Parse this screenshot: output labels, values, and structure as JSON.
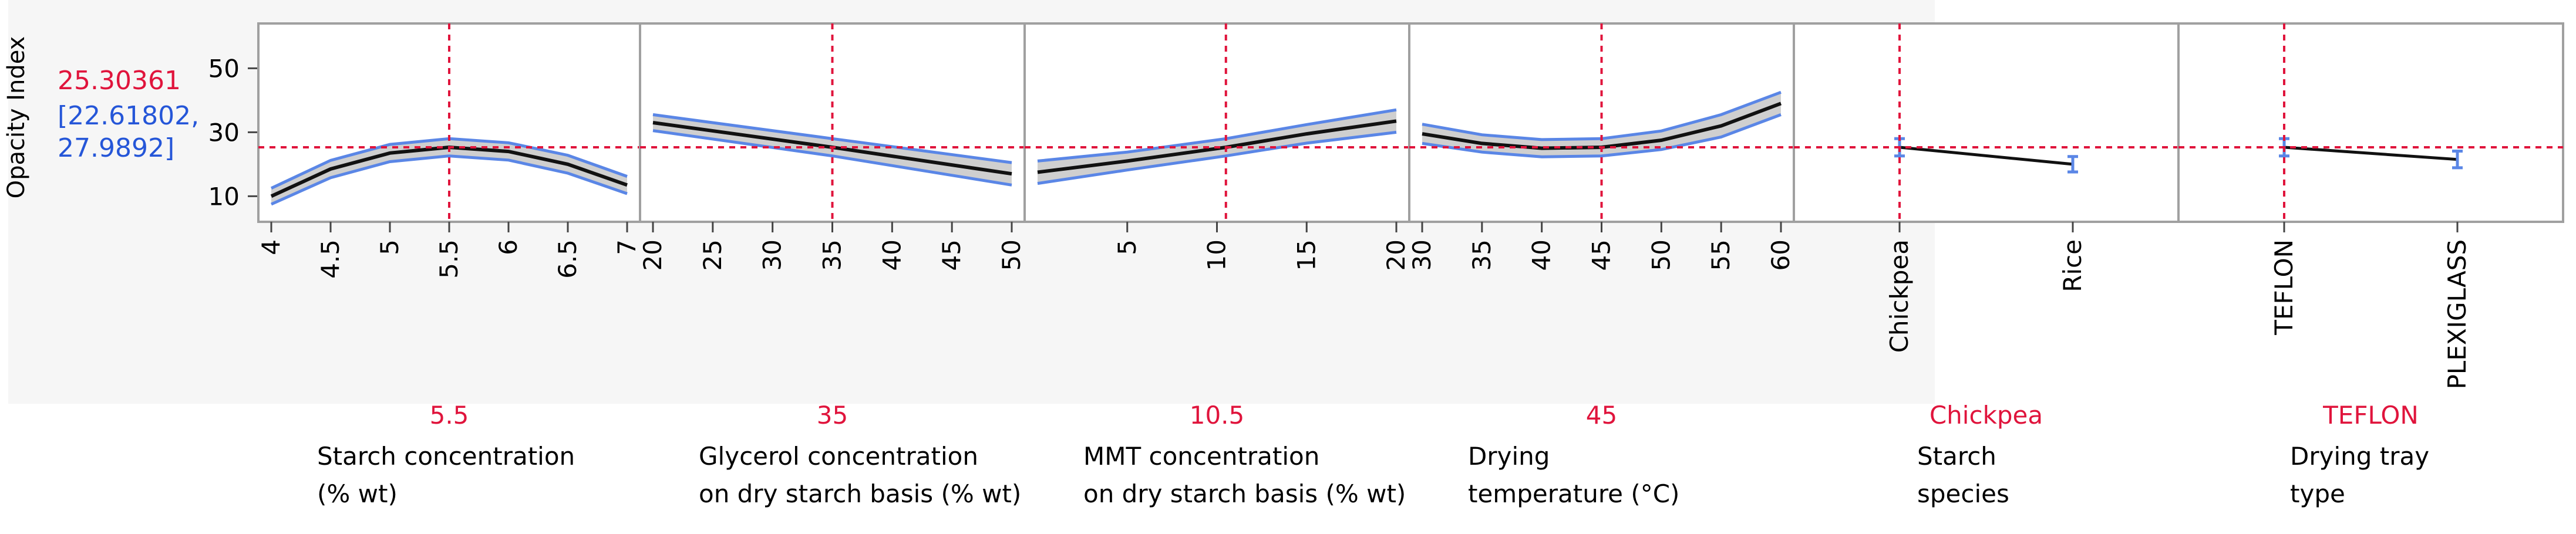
{
  "ylabel": "Opacity Index",
  "prediction": {
    "value": "25.30361",
    "ci": "[22.61802,",
    "ci2": "27.9892]"
  },
  "colors": {
    "curve": "#111111",
    "band": "#5a86e6",
    "band_fill": "#cfcfcf",
    "crosshair": "#e0143c",
    "ci_text": "#2556d8",
    "frame": "#a0a0a0"
  },
  "chart_data": {
    "type": "line",
    "title": "",
    "ylabel": "Opacity Index",
    "ylim": [
      2,
      64
    ],
    "yticks": [
      "10",
      "30",
      "50"
    ],
    "ytick_values": [
      10,
      30,
      50
    ],
    "current_y": 25.30361,
    "panels": [
      {
        "kind": "continuous",
        "xlim": [
          4,
          7
        ],
        "current_x": 5.5,
        "current_label": "5.5",
        "ticks": [
          "4",
          "4.5",
          "5",
          "5.5",
          "6",
          "6.5",
          "7"
        ],
        "tick_values": [
          4,
          4.5,
          5,
          5.5,
          6,
          6.5,
          7
        ],
        "label_line1": "Starch  concentration",
        "label_line2": "(% wt)",
        "x": [
          4,
          4.5,
          5,
          5.5,
          6,
          6.5,
          7
        ],
        "y": [
          10.0,
          18.5,
          23.5,
          25.3,
          24.0,
          20.0,
          13.5
        ],
        "lower": [
          7.5,
          15.8,
          20.8,
          22.6,
          21.3,
          17.2,
          10.8
        ],
        "upper": [
          12.5,
          21.2,
          26.2,
          28.0,
          26.7,
          22.8,
          16.2
        ]
      },
      {
        "kind": "continuous",
        "xlim": [
          20,
          50
        ],
        "current_x": 35,
        "current_label": "35",
        "ticks": [
          "20",
          "25",
          "30",
          "35",
          "40",
          "45",
          "50"
        ],
        "tick_values": [
          20,
          25,
          30,
          35,
          40,
          45,
          50
        ],
        "label_line1": "Glycerol  concentration",
        "label_line2": "on dry starch  basis (% wt)",
        "x": [
          20,
          35,
          50
        ],
        "y": [
          33.0,
          25.3,
          17.0
        ],
        "lower": [
          30.5,
          22.6,
          13.5
        ],
        "upper": [
          35.5,
          28.0,
          20.5
        ]
      },
      {
        "kind": "continuous",
        "xlim": [
          0,
          20
        ],
        "current_x": 10.5,
        "current_label": "10.5",
        "ticks": [
          "5",
          "10",
          "15",
          "20"
        ],
        "tick_values": [
          5,
          10,
          15,
          20
        ],
        "label_line1": "MMT  concentration",
        "label_line2": "on dry starch  basis (% wt)",
        "x": [
          0,
          5,
          10.5,
          15,
          20
        ],
        "y": [
          17.5,
          21.0,
          25.3,
          29.5,
          33.5
        ],
        "lower": [
          14.0,
          18.2,
          22.6,
          26.6,
          30.0
        ],
        "upper": [
          21.0,
          23.8,
          28.0,
          32.4,
          37.0
        ]
      },
      {
        "kind": "continuous",
        "xlim": [
          30,
          60
        ],
        "current_x": 45,
        "current_label": "45",
        "ticks": [
          "30",
          "35",
          "40",
          "45",
          "50",
          "55",
          "60"
        ],
        "tick_values": [
          30,
          35,
          40,
          45,
          50,
          55,
          60
        ],
        "label_line1": "Drying",
        "label_line2": "temperature (°C)",
        "x": [
          30,
          35,
          40,
          45,
          50,
          55,
          60
        ],
        "y": [
          29.5,
          26.5,
          25.0,
          25.3,
          27.5,
          32.0,
          39.0
        ],
        "lower": [
          26.5,
          23.8,
          22.3,
          22.6,
          24.6,
          28.5,
          35.5
        ],
        "upper": [
          32.5,
          29.2,
          27.7,
          28.0,
          30.4,
          35.5,
          42.5
        ]
      },
      {
        "kind": "categorical",
        "current_label": "Chickpea",
        "categories": [
          "Chickpea",
          "Rice"
        ],
        "label_line1": "Starch",
        "label_line2": "species",
        "y": [
          25.3,
          20.0
        ],
        "lower": [
          22.6,
          17.6
        ],
        "upper": [
          28.0,
          22.4
        ]
      },
      {
        "kind": "categorical",
        "current_label": "TEFLON",
        "categories": [
          "TEFLON",
          "PLEXIGLASS"
        ],
        "label_line1": "Drying tray",
        "label_line2": "type",
        "y": [
          25.3,
          21.5
        ],
        "lower": [
          22.6,
          18.9
        ],
        "upper": [
          28.0,
          24.1
        ]
      }
    ]
  }
}
